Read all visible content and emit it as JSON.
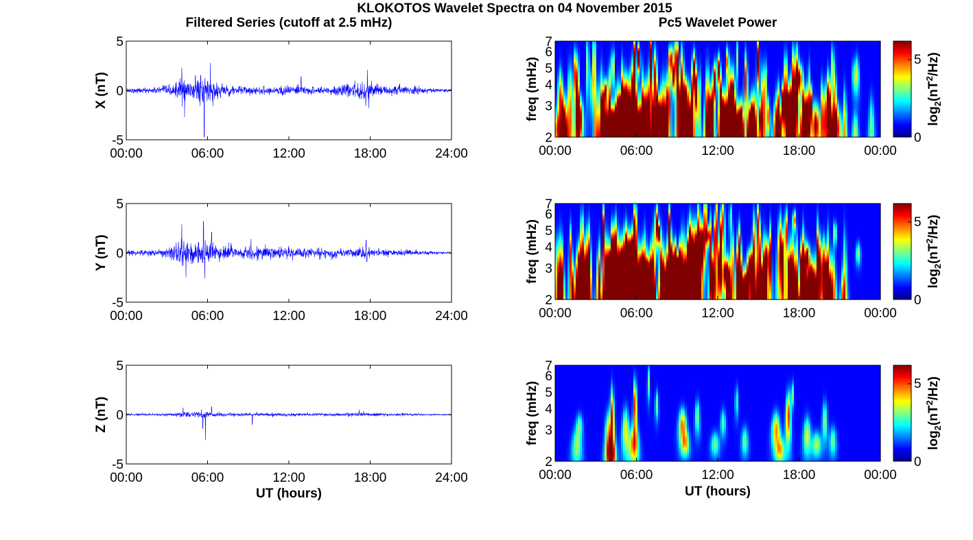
{
  "figure": {
    "title": "KLOKOTOS Wavelet Spectra on 04 November 2015",
    "left_column_title": "Filtered Series (cutoff at 2.5 mHz)",
    "right_column_title": "Pc5 Wavelet Power"
  },
  "chart_data": [
    {
      "type": "line",
      "panel": "X",
      "ylabel": "X (nT)",
      "xlabel": "",
      "ylim": [
        -5,
        5
      ],
      "yticks": [
        "5",
        "0",
        "-5"
      ],
      "xticks": [
        "00:00",
        "06:00",
        "12:00",
        "18:00",
        "24:00"
      ],
      "xlim_hours": [
        0,
        24
      ],
      "color": "#0000ff",
      "envelope": {
        "t": [
          0,
          2,
          3.5,
          4,
          4.5,
          5,
          5.5,
          5.8,
          6,
          6.3,
          7,
          8,
          9,
          10,
          11,
          12,
          13,
          14,
          15,
          16,
          16.5,
          17,
          17.5,
          18,
          19,
          20,
          21,
          22,
          23,
          24
        ],
        "amp": [
          0.25,
          0.35,
          0.6,
          1.6,
          1.2,
          1.0,
          1.3,
          2.2,
          1.8,
          1.4,
          0.8,
          0.5,
          0.45,
          0.45,
          0.45,
          0.6,
          0.5,
          0.4,
          0.4,
          0.6,
          0.8,
          0.9,
          1.3,
          0.9,
          0.6,
          0.6,
          0.5,
          0.35,
          0.2,
          0.15
        ]
      },
      "spikes": [
        {
          "t": 4.1,
          "v": 2.3
        },
        {
          "t": 4.3,
          "v": -2.7
        },
        {
          "t": 5.1,
          "v": 1.5
        },
        {
          "t": 5.75,
          "v": -4.7
        },
        {
          "t": 6.2,
          "v": 2.8
        },
        {
          "t": 6.4,
          "v": -1.6
        },
        {
          "t": 12.9,
          "v": 1.4
        },
        {
          "t": 17.8,
          "v": 2.1
        },
        {
          "t": 17.9,
          "v": -1.8
        }
      ]
    },
    {
      "type": "heatmap",
      "panel": "X",
      "ylabel": "freq (mHz)",
      "colorbar_label": "log2(nT2/Hz)",
      "ylim_mHz": [
        2,
        7
      ],
      "yticks": [
        "7",
        "6",
        "5",
        "4",
        "3",
        "2"
      ],
      "xticks": [
        "00:00",
        "06:00",
        "12:00",
        "18:00",
        "00:00"
      ],
      "colorbar_ticks": [
        "5",
        "0"
      ],
      "clim": [
        0,
        6.2
      ],
      "activity": {
        "t": [
          0,
          1,
          2,
          3,
          3.5,
          4,
          5,
          6,
          7,
          8,
          9,
          10,
          11,
          12,
          13,
          14,
          15,
          16,
          16.5,
          17,
          17.5,
          18,
          19,
          20,
          20.5,
          21,
          22,
          23,
          24
        ],
        "level": [
          0.3,
          0.55,
          0.5,
          0.35,
          0.55,
          0.95,
          0.9,
          0.85,
          0.7,
          0.75,
          0.8,
          0.75,
          0.7,
          0.75,
          0.85,
          0.7,
          0.65,
          0.55,
          0.8,
          0.95,
          0.9,
          0.75,
          0.75,
          0.55,
          0.45,
          0.3,
          0.15,
          0.05,
          0.02
        ]
      }
    },
    {
      "type": "line",
      "panel": "Y",
      "ylabel": "Y (nT)",
      "xlabel": "",
      "ylim": [
        -5,
        5
      ],
      "yticks": [
        "5",
        "0",
        "-5"
      ],
      "xticks": [
        "00:00",
        "06:00",
        "12:00",
        "18:00",
        "24:00"
      ],
      "xlim_hours": [
        0,
        24
      ],
      "color": "#0000ff",
      "envelope": {
        "t": [
          0,
          2,
          3,
          4,
          4.5,
          5,
          5.5,
          6,
          6.5,
          7,
          8,
          9,
          10,
          11,
          12,
          13,
          14,
          15,
          16,
          17,
          17.5,
          18,
          19,
          20,
          21,
          22,
          23,
          24
        ],
        "amp": [
          0.25,
          0.35,
          0.5,
          1.6,
          1.3,
          1.1,
          1.4,
          1.6,
          1.2,
          0.9,
          0.8,
          0.9,
          0.8,
          0.7,
          0.65,
          0.6,
          0.55,
          0.5,
          0.5,
          0.55,
          0.7,
          0.55,
          0.4,
          0.4,
          0.3,
          0.2,
          0.15,
          0.1
        ]
      },
      "spikes": [
        {
          "t": 4.1,
          "v": 2.9
        },
        {
          "t": 4.4,
          "v": -2.5
        },
        {
          "t": 5.7,
          "v": 3.2
        },
        {
          "t": 5.8,
          "v": -2.6
        },
        {
          "t": 6.3,
          "v": 2.1
        },
        {
          "t": 9.2,
          "v": 1.4
        },
        {
          "t": 17.7,
          "v": 1.3
        },
        {
          "t": 17.75,
          "v": -0.9
        }
      ]
    },
    {
      "type": "heatmap",
      "panel": "Y",
      "ylabel": "freq (mHz)",
      "colorbar_label": "log2(nT2/Hz)",
      "ylim_mHz": [
        2,
        7
      ],
      "yticks": [
        "7",
        "6",
        "5",
        "4",
        "3",
        "2"
      ],
      "xticks": [
        "00:00",
        "06:00",
        "12:00",
        "18:00",
        "00:00"
      ],
      "colorbar_ticks": [
        "5",
        "0"
      ],
      "clim": [
        0,
        6.2
      ],
      "activity": {
        "t": [
          0,
          1,
          2,
          3,
          3.5,
          4,
          5,
          6,
          7,
          8,
          9,
          10,
          11,
          12,
          13,
          14,
          15,
          16,
          17,
          17.5,
          18,
          19,
          20,
          20.5,
          21,
          22,
          23,
          24
        ],
        "level": [
          0.35,
          0.6,
          0.55,
          0.5,
          0.7,
          1.0,
          0.95,
          1.0,
          0.9,
          0.85,
          0.9,
          0.85,
          0.8,
          0.8,
          0.75,
          0.7,
          0.6,
          0.55,
          0.85,
          0.8,
          0.6,
          0.6,
          0.6,
          0.45,
          0.2,
          0.1,
          0.05,
          0.02
        ]
      }
    },
    {
      "type": "line",
      "panel": "Z",
      "ylabel": "Z (nT)",
      "xlabel": "UT (hours)",
      "ylim": [
        -5,
        5
      ],
      "yticks": [
        "5",
        "0",
        "-5"
      ],
      "xticks": [
        "00:00",
        "06:00",
        "12:00",
        "18:00",
        "24:00"
      ],
      "xlim_hours": [
        0,
        24
      ],
      "color": "#0000ff",
      "envelope": {
        "t": [
          0,
          2,
          3.5,
          4,
          5,
          5.5,
          6,
          7,
          8,
          10,
          12,
          14,
          16,
          17,
          18,
          20,
          22,
          24
        ],
        "amp": [
          0.12,
          0.12,
          0.15,
          0.35,
          0.25,
          0.4,
          0.3,
          0.2,
          0.2,
          0.18,
          0.16,
          0.15,
          0.18,
          0.25,
          0.2,
          0.15,
          0.1,
          0.08
        ]
      },
      "spikes": [
        {
          "t": 4.2,
          "v": 0.7
        },
        {
          "t": 5.65,
          "v": -1.4
        },
        {
          "t": 5.85,
          "v": -2.6
        },
        {
          "t": 6.3,
          "v": 0.8
        },
        {
          "t": 9.3,
          "v": -1.0
        },
        {
          "t": 17.2,
          "v": 0.5
        }
      ]
    },
    {
      "type": "heatmap",
      "panel": "Z",
      "ylabel": "freq (mHz)",
      "xlabel": "UT (hours)",
      "colorbar_label": "log2(nT2/Hz)",
      "ylim_mHz": [
        2,
        7
      ],
      "yticks": [
        "7",
        "6",
        "5",
        "4",
        "3",
        "2"
      ],
      "xticks": [
        "00:00",
        "06:00",
        "12:00",
        "18:00",
        "00:00"
      ],
      "colorbar_ticks": [
        "5",
        "0"
      ],
      "clim": [
        0,
        6.2
      ],
      "blobs": [
        {
          "t": 1.6,
          "f": 2.4,
          "dt": 0.35,
          "df": 0.6,
          "p": 2.8
        },
        {
          "t": 1.8,
          "f": 3.2,
          "dt": 0.3,
          "df": 0.5,
          "p": 2.4
        },
        {
          "t": 3.9,
          "f": 2.8,
          "dt": 0.25,
          "df": 0.9,
          "p": 3.6
        },
        {
          "t": 4.2,
          "f": 3.4,
          "dt": 0.22,
          "df": 1.6,
          "p": 5.6
        },
        {
          "t": 4.1,
          "f": 2.2,
          "dt": 0.3,
          "df": 0.4,
          "p": 4.2
        },
        {
          "t": 5.2,
          "f": 3.0,
          "dt": 0.3,
          "df": 0.9,
          "p": 3.6
        },
        {
          "t": 5.9,
          "f": 4.2,
          "dt": 0.2,
          "df": 1.5,
          "p": 6.0
        },
        {
          "t": 5.8,
          "f": 2.5,
          "dt": 0.35,
          "df": 0.6,
          "p": 4.0
        },
        {
          "t": 6.9,
          "f": 5.6,
          "dt": 0.2,
          "df": 1.2,
          "p": 2.8
        },
        {
          "t": 7.5,
          "f": 4.2,
          "dt": 0.2,
          "df": 0.8,
          "p": 2.6
        },
        {
          "t": 9.4,
          "f": 3.2,
          "dt": 0.35,
          "df": 0.7,
          "p": 4.6
        },
        {
          "t": 9.6,
          "f": 2.5,
          "dt": 0.3,
          "df": 0.4,
          "p": 3.2
        },
        {
          "t": 10.5,
          "f": 3.6,
          "dt": 0.25,
          "df": 0.8,
          "p": 2.8
        },
        {
          "t": 11.8,
          "f": 2.5,
          "dt": 0.3,
          "df": 0.4,
          "p": 2.6
        },
        {
          "t": 12.4,
          "f": 3.3,
          "dt": 0.25,
          "df": 0.6,
          "p": 2.4
        },
        {
          "t": 13.4,
          "f": 4.4,
          "dt": 0.2,
          "df": 0.9,
          "p": 2.3
        },
        {
          "t": 14.0,
          "f": 2.6,
          "dt": 0.25,
          "df": 0.5,
          "p": 2.6
        },
        {
          "t": 16.3,
          "f": 3.0,
          "dt": 0.35,
          "df": 0.7,
          "p": 4.4
        },
        {
          "t": 16.6,
          "f": 2.3,
          "dt": 0.3,
          "df": 0.4,
          "p": 3.4
        },
        {
          "t": 17.2,
          "f": 3.6,
          "dt": 0.25,
          "df": 1.2,
          "p": 5.2
        },
        {
          "t": 17.5,
          "f": 4.8,
          "dt": 0.2,
          "df": 0.8,
          "p": 3.0
        },
        {
          "t": 18.6,
          "f": 2.8,
          "dt": 0.3,
          "df": 0.7,
          "p": 3.4
        },
        {
          "t": 19.3,
          "f": 2.5,
          "dt": 0.3,
          "df": 0.4,
          "p": 3.2
        },
        {
          "t": 19.9,
          "f": 3.4,
          "dt": 0.25,
          "df": 0.9,
          "p": 2.8
        },
        {
          "t": 20.5,
          "f": 2.6,
          "dt": 0.25,
          "df": 0.5,
          "p": 2.6
        }
      ]
    }
  ]
}
